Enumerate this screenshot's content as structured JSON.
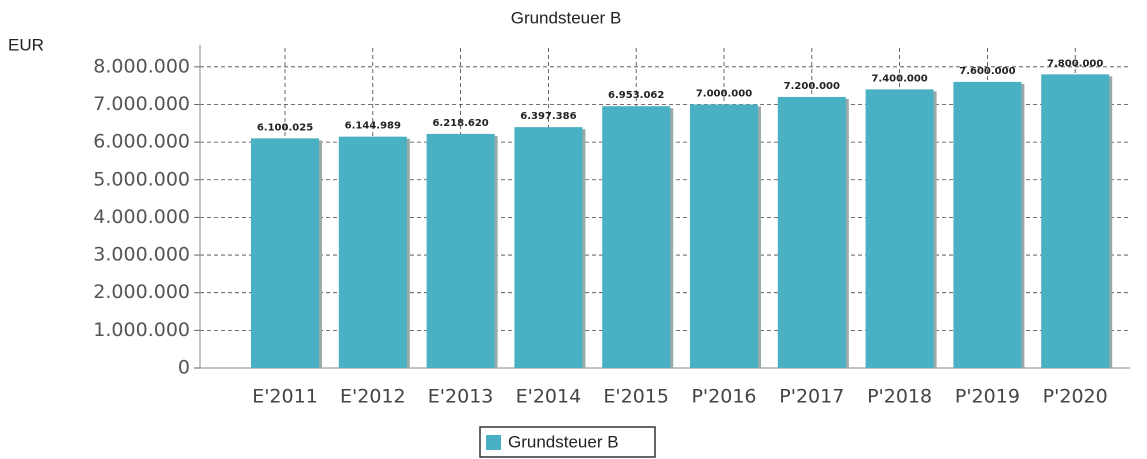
{
  "chart_data": {
    "type": "bar",
    "title": "Grundsteuer B",
    "y_label": "EUR",
    "categories": [
      "E'2011",
      "E'2012",
      "E'2013",
      "E'2014",
      "E'2015",
      "P'2016",
      "P'2017",
      "P'2018",
      "P'2019",
      "P'2020"
    ],
    "series": [
      {
        "name": "Grundsteuer B",
        "color": "#4ab0c4",
        "values": [
          6100025,
          6144989,
          6218620,
          6397386,
          6953062,
          7000000,
          7200000,
          7400000,
          7600000,
          7800000
        ],
        "value_labels": [
          "6.100.025",
          "6.144.989",
          "6.218.620",
          "6.397.386",
          "6.953.062",
          "7.000.000",
          "7.200.000",
          "7.400.000",
          "7.600.000",
          "7.800.000"
        ]
      }
    ],
    "ylim": [
      0,
      8500000
    ],
    "yticks": [
      0,
      {
        "value": 1000000,
        "label": "1.000.000"
      },
      {
        "value": 2000000,
        "label": "2.000.000"
      },
      {
        "value": 3000000,
        "label": "3.000.000"
      },
      {
        "value": 4000000,
        "label": "4.000.000"
      },
      {
        "value": 5000000,
        "label": "5.000.000"
      },
      {
        "value": 6000000,
        "label": "6.000.000"
      },
      {
        "value": 7000000,
        "label": "7.000.000"
      },
      {
        "value": 8000000,
        "label": "8.000.000"
      }
    ],
    "grid": true,
    "legend": "bottom"
  }
}
